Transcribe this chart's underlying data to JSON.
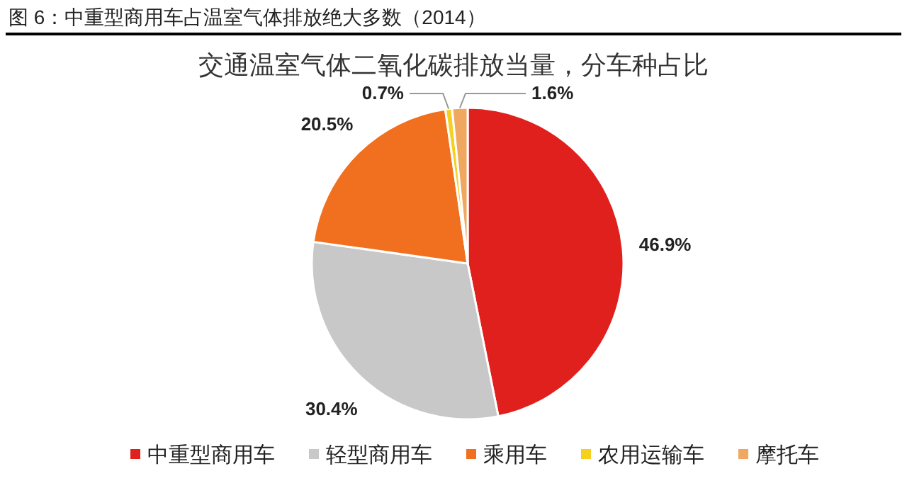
{
  "chart_data": {
    "type": "pie",
    "title": "图 6：中重型商用车占温室气体排放绝大多数（2014）",
    "subtitle": "交通温室气体二氧化碳排放当量，分车种占比",
    "categories": [
      "中重型商用车",
      "轻型商用车",
      "乘用车",
      "农用运输车",
      "摩托车"
    ],
    "values": [
      46.9,
      30.4,
      20.5,
      0.7,
      1.6
    ],
    "colors": [
      "#e0201c",
      "#c8c8c8",
      "#f07020",
      "#f5d020",
      "#f0a860"
    ],
    "value_labels": [
      "46.9%",
      "30.4%",
      "20.5%",
      "0.7%",
      "1.6%"
    ],
    "legend": "bottom"
  }
}
